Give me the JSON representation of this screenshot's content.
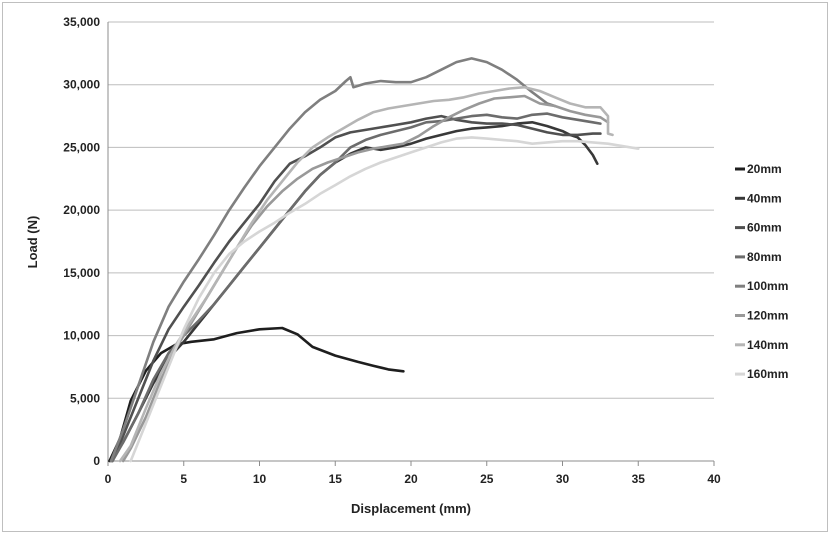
{
  "chart_data": {
    "type": "line",
    "title": "",
    "xlabel": "Displacement (mm)",
    "ylabel": "Load (N)",
    "xlim": [
      0,
      40
    ],
    "ylim": [
      0,
      35000
    ],
    "x_ticks": [
      0,
      5,
      10,
      15,
      20,
      25,
      30,
      35,
      40
    ],
    "x_tick_labels": [
      "0",
      "5",
      "10",
      "15",
      "20",
      "25",
      "30",
      "35",
      "40"
    ],
    "y_ticks": [
      0,
      5000,
      10000,
      15000,
      20000,
      25000,
      30000,
      35000
    ],
    "y_tick_labels": [
      "0",
      "5,000",
      "10,000",
      "15,000",
      "20,000",
      "25,000",
      "30,000",
      "35,000"
    ],
    "grid": "horizontal",
    "legend_position": "right",
    "series": [
      {
        "name": "20mm",
        "color": "#1e1e1e",
        "points": [
          [
            0.1,
            0
          ],
          [
            0.8,
            1800
          ],
          [
            1.5,
            4800
          ],
          [
            2.5,
            7200
          ],
          [
            3.5,
            8600
          ],
          [
            4.5,
            9300
          ],
          [
            5.5,
            9500
          ],
          [
            7,
            9700
          ],
          [
            8.5,
            10200
          ],
          [
            10,
            10500
          ],
          [
            11.5,
            10600
          ],
          [
            12.5,
            10100
          ],
          [
            13.5,
            9100
          ],
          [
            15,
            8400
          ],
          [
            16.5,
            7900
          ],
          [
            17.5,
            7600
          ],
          [
            18.5,
            7300
          ],
          [
            19.5,
            7150
          ]
        ]
      },
      {
        "name": "40mm",
        "color": "#383838",
        "points": [
          [
            0.2,
            0
          ],
          [
            1,
            1500
          ],
          [
            2,
            3800
          ],
          [
            3,
            6200
          ],
          [
            4,
            8200
          ],
          [
            5,
            9500
          ],
          [
            6,
            11000
          ],
          [
            7,
            12500
          ],
          [
            8,
            14000
          ],
          [
            9,
            15500
          ],
          [
            10,
            17000
          ],
          [
            11,
            18500
          ],
          [
            12,
            20000
          ],
          [
            13,
            21500
          ],
          [
            14,
            22800
          ],
          [
            15,
            23800
          ],
          [
            16,
            24500
          ],
          [
            17,
            25000
          ],
          [
            18,
            24800
          ],
          [
            19,
            25000
          ],
          [
            20,
            25300
          ],
          [
            21,
            25700
          ],
          [
            22,
            26000
          ],
          [
            23,
            26300
          ],
          [
            24,
            26500
          ],
          [
            25,
            26600
          ],
          [
            26,
            26700
          ],
          [
            27,
            26900
          ],
          [
            28,
            27000
          ],
          [
            29,
            26700
          ],
          [
            30,
            26300
          ],
          [
            30.5,
            26000
          ],
          [
            31,
            25800
          ],
          [
            31.5,
            25200
          ],
          [
            32,
            24400
          ],
          [
            32.3,
            23700
          ]
        ]
      },
      {
        "name": "60mm",
        "color": "#505050",
        "points": [
          [
            0.3,
            0
          ],
          [
            1,
            2000
          ],
          [
            2,
            5000
          ],
          [
            3,
            8000
          ],
          [
            4,
            10500
          ],
          [
            5,
            12300
          ],
          [
            6,
            14000
          ],
          [
            7,
            15800
          ],
          [
            8,
            17500
          ],
          [
            9,
            19000
          ],
          [
            10,
            20500
          ],
          [
            11,
            22300
          ],
          [
            12,
            23700
          ],
          [
            13,
            24300
          ],
          [
            14,
            25000
          ],
          [
            15,
            25800
          ],
          [
            16,
            26200
          ],
          [
            17,
            26400
          ],
          [
            18,
            26600
          ],
          [
            19,
            26800
          ],
          [
            20,
            27000
          ],
          [
            21,
            27300
          ],
          [
            22,
            27500
          ],
          [
            23,
            27200
          ],
          [
            24,
            27000
          ],
          [
            25,
            26900
          ],
          [
            26,
            26900
          ],
          [
            27,
            26800
          ],
          [
            28,
            26500
          ],
          [
            29,
            26200
          ],
          [
            30,
            26000
          ],
          [
            31,
            26000
          ],
          [
            32,
            26100
          ],
          [
            32.5,
            26100
          ]
        ]
      },
      {
        "name": "80mm",
        "color": "#6c6c6c",
        "points": [
          [
            0.3,
            0
          ],
          [
            1,
            1500
          ],
          [
            2,
            3800
          ],
          [
            3,
            6500
          ],
          [
            4,
            8600
          ],
          [
            5,
            10000
          ],
          [
            6,
            11200
          ],
          [
            7,
            12500
          ],
          [
            8,
            14000
          ],
          [
            9,
            15500
          ],
          [
            10,
            17000
          ],
          [
            11,
            18500
          ],
          [
            12,
            20000
          ],
          [
            13,
            21500
          ],
          [
            14,
            22800
          ],
          [
            15,
            23800
          ],
          [
            16,
            25000
          ],
          [
            17,
            25600
          ],
          [
            18,
            26000
          ],
          [
            19,
            26300
          ],
          [
            20,
            26600
          ],
          [
            21,
            27000
          ],
          [
            22,
            27100
          ],
          [
            23,
            27300
          ],
          [
            24,
            27500
          ],
          [
            25,
            27600
          ],
          [
            26,
            27400
          ],
          [
            27,
            27300
          ],
          [
            28,
            27600
          ],
          [
            29,
            27700
          ],
          [
            30,
            27400
          ],
          [
            31,
            27200
          ],
          [
            32,
            27000
          ],
          [
            32.5,
            26900
          ]
        ]
      },
      {
        "name": "100mm",
        "color": "#7f7f7f",
        "points": [
          [
            0.2,
            0
          ],
          [
            1,
            2500
          ],
          [
            2,
            6000
          ],
          [
            3,
            9500
          ],
          [
            4,
            12300
          ],
          [
            5,
            14300
          ],
          [
            6,
            16100
          ],
          [
            7,
            18000
          ],
          [
            8,
            20000
          ],
          [
            9,
            21800
          ],
          [
            10,
            23500
          ],
          [
            11,
            25000
          ],
          [
            12,
            26500
          ],
          [
            13,
            27800
          ],
          [
            14,
            28800
          ],
          [
            15,
            29500
          ],
          [
            15.7,
            30300
          ],
          [
            16,
            30600
          ],
          [
            16.2,
            29800
          ],
          [
            17,
            30100
          ],
          [
            18,
            30300
          ],
          [
            19,
            30200
          ],
          [
            20,
            30200
          ],
          [
            21,
            30600
          ],
          [
            22,
            31200
          ],
          [
            23,
            31800
          ],
          [
            24,
            32100
          ],
          [
            25,
            31800
          ],
          [
            26,
            31200
          ],
          [
            27,
            30400
          ],
          [
            28,
            29400
          ],
          [
            29,
            28500
          ],
          [
            29.5,
            28300
          ]
        ]
      },
      {
        "name": "120mm",
        "color": "#999999",
        "points": [
          [
            1,
            0
          ],
          [
            1.5,
            1000
          ],
          [
            2.5,
            3500
          ],
          [
            3.5,
            6500
          ],
          [
            4.5,
            9000
          ],
          [
            5.5,
            11000
          ],
          [
            6.5,
            13000
          ],
          [
            7.5,
            15000
          ],
          [
            8.5,
            17000
          ],
          [
            9.5,
            18800
          ],
          [
            10.5,
            20300
          ],
          [
            11.5,
            21500
          ],
          [
            12.5,
            22500
          ],
          [
            13.5,
            23300
          ],
          [
            14.5,
            23800
          ],
          [
            15.5,
            24200
          ],
          [
            16.5,
            24600
          ],
          [
            17.5,
            24900
          ],
          [
            18.5,
            25100
          ],
          [
            19.5,
            25300
          ],
          [
            20.5,
            25900
          ],
          [
            21.5,
            26700
          ],
          [
            22.5,
            27400
          ],
          [
            23.5,
            28000
          ],
          [
            24.5,
            28500
          ],
          [
            25.5,
            28900
          ],
          [
            26.5,
            29000
          ],
          [
            27.5,
            29100
          ],
          [
            28.5,
            28500
          ],
          [
            29.5,
            28300
          ],
          [
            30.5,
            27900
          ],
          [
            31.5,
            27600
          ],
          [
            32.5,
            27400
          ],
          [
            33,
            27000
          ]
        ]
      },
      {
        "name": "140mm",
        "color": "#b5b5b5",
        "points": [
          [
            0.8,
            0
          ],
          [
            1.5,
            1200
          ],
          [
            2.5,
            4200
          ],
          [
            3.5,
            7000
          ],
          [
            4.5,
            9300
          ],
          [
            5.5,
            11200
          ],
          [
            6.5,
            13000
          ],
          [
            7.5,
            15000
          ],
          [
            8.5,
            17000
          ],
          [
            9.5,
            19000
          ],
          [
            10.5,
            20800
          ],
          [
            11.5,
            22300
          ],
          [
            12.5,
            23800
          ],
          [
            13.5,
            25000
          ],
          [
            14.5,
            25800
          ],
          [
            15.5,
            26500
          ],
          [
            16.5,
            27200
          ],
          [
            17.5,
            27800
          ],
          [
            18.5,
            28100
          ],
          [
            19.5,
            28300
          ],
          [
            20.5,
            28500
          ],
          [
            21.5,
            28700
          ],
          [
            22.5,
            28800
          ],
          [
            23.5,
            29000
          ],
          [
            24.5,
            29300
          ],
          [
            25.5,
            29500
          ],
          [
            26.5,
            29700
          ],
          [
            27.5,
            29800
          ],
          [
            28.5,
            29500
          ],
          [
            29.5,
            29000
          ],
          [
            30.5,
            28500
          ],
          [
            31.5,
            28200
          ],
          [
            32.5,
            28200
          ],
          [
            33,
            27500
          ],
          [
            33,
            26100
          ],
          [
            33.3,
            26000
          ]
        ]
      },
      {
        "name": "160mm",
        "color": "#d6d6d6",
        "points": [
          [
            1.5,
            0
          ],
          [
            2,
            1500
          ],
          [
            3,
            4500
          ],
          [
            4,
            7500
          ],
          [
            5,
            10500
          ],
          [
            6,
            13000
          ],
          [
            7,
            15000
          ],
          [
            8,
            16500
          ],
          [
            9,
            17500
          ],
          [
            10,
            18300
          ],
          [
            11,
            19000
          ],
          [
            12,
            19800
          ],
          [
            13,
            20500
          ],
          [
            14,
            21300
          ],
          [
            15,
            22000
          ],
          [
            16,
            22700
          ],
          [
            17,
            23300
          ],
          [
            18,
            23800
          ],
          [
            19,
            24200
          ],
          [
            20,
            24600
          ],
          [
            21,
            25000
          ],
          [
            22,
            25400
          ],
          [
            23,
            25700
          ],
          [
            24,
            25800
          ],
          [
            25,
            25700
          ],
          [
            26,
            25600
          ],
          [
            27,
            25500
          ],
          [
            28,
            25300
          ],
          [
            29,
            25400
          ],
          [
            30,
            25500
          ],
          [
            31,
            25500
          ],
          [
            32,
            25400
          ],
          [
            33,
            25300
          ],
          [
            34,
            25100
          ],
          [
            35,
            24900
          ]
        ]
      }
    ]
  }
}
